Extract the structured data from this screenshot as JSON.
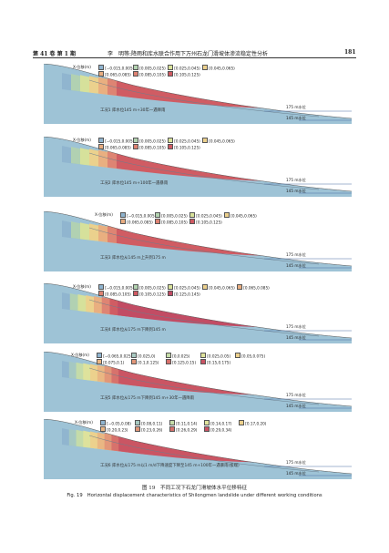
{
  "header": {
    "volume": "第 41 卷 第 1 期",
    "running_title": "李　明等:降雨和库水联合作用下万州石龙门滑坡体渗流稳定性分析",
    "page_number": "181"
  },
  "panels": [
    {
      "legend_title": "X-位移(m)",
      "legend_items": [
        "[−0.015,0.005)",
        "[0.005,0.025)",
        "[0.025,0.045)",
        "[0.045,0.065)",
        "[0.065,0.085)",
        "[0.085,0.105)",
        "[0.105,0.125)"
      ],
      "swatches": [
        "#8fb4cf",
        "#b3d3b0",
        "#d8e29a",
        "#ecd08c",
        "#e9ad80",
        "#dd8272",
        "#cf5a62"
      ],
      "level_upper": "175 m水位",
      "level_lower": "145 m水位",
      "condition": "工况1 库水位145 m+30年一遇降雨"
    },
    {
      "legend_title": "X-位移(m)",
      "legend_items": [
        "[−0.015,0.005)",
        "[0.005,0.025)",
        "[0.025,0.045)",
        "[0.045,0.065)",
        "[0.065,0.085)",
        "[0.085,0.105)",
        "[0.105,0.125)"
      ],
      "swatches": [
        "#8fb4cf",
        "#b3d3b0",
        "#d8e29a",
        "#ecd08c",
        "#e9ad80",
        "#dd8272",
        "#cf5a62"
      ],
      "level_upper": "175 m水位",
      "level_lower": "145 m水位",
      "condition": "工况2 库水位145 m+100年一遇暴雨"
    },
    {
      "legend_title": "X-位移(m)",
      "legend_items": [
        "[−0.015,0.005)",
        "[0.005,0.025)",
        "[0.025,0.045)",
        "[0.045,0.065)",
        "[0.065,0.085)",
        "[0.085,0.105)",
        "[0.105,0.125)"
      ],
      "swatches": [
        "#8fb4cf",
        "#b3d3b0",
        "#d8e29a",
        "#ecd08c",
        "#e9ad80",
        "#dd8272",
        "#cf5a62"
      ],
      "level_upper": "175 m水位",
      "level_lower": "145 m水位",
      "condition": "工况3 库水位从145 m上升到175 m"
    },
    {
      "legend_title": "X-位移(m)",
      "legend_items": [
        "[−0.015,0.005)",
        "[0.005,0.025)",
        "[0.025,0.045)",
        "[0.045,0.065)",
        "[0.065,0.085)",
        "[0.085,0.105)",
        "[0.105,0.125)",
        "[0.125,0.145)"
      ],
      "swatches": [
        "#8fb4cf",
        "#b3d3b0",
        "#d8e29a",
        "#ecd08c",
        "#e9ad80",
        "#dd8272",
        "#cf5a62",
        "#c14b64"
      ],
      "level_upper": "175 m水位",
      "level_lower": "145 m水位",
      "condition": "工况4 库水位从175 m下降到145 m"
    },
    {
      "legend_title": "X-位移(m)",
      "legend_items": [
        "[−0.065,0.025)",
        "[0.025,0)",
        "[0,0.025)",
        "[0.025,0.05)",
        "[0.05,0.075)",
        "[0.075,0.1)",
        "[0.1,0.125)",
        "[0.125,0.15)",
        "[0.15,0.175)"
      ],
      "swatches": [
        "#8fb4cf",
        "#a7c9c1",
        "#c5dca8",
        "#dfe39b",
        "#ecd08c",
        "#e9b583",
        "#e19577",
        "#d6706b",
        "#c95363"
      ],
      "level_upper": "175 m水位",
      "level_lower": "145 m水位",
      "condition": "工况5 库水位从175 m下降到145 m+30年一遇降雨"
    },
    {
      "legend_title": "X-位移(m)",
      "legend_items": [
        "[−0.05,0.08)",
        "[0.08,0.11)",
        "[0.11,0.14)",
        "[0.14,0.17)",
        "[0.17,0.20)",
        "[0.20,0.23)",
        "[0.23,0.26)",
        "[0.26,0.29)",
        "[0.29,0.34)"
      ],
      "swatches": [
        "#8fb4cf",
        "#a7c9c1",
        "#c5dca8",
        "#dfe39b",
        "#ecd08c",
        "#e9b583",
        "#e19577",
        "#d6706b",
        "#c95363"
      ],
      "level_upper": "175 m水位",
      "level_lower": "145 m水位",
      "condition": "工况6 库水位从175 m以1 m/d下降速度下降至145 m+100年一遇暴雨(极端)"
    }
  ],
  "caption": {
    "cn": "图 19　不同工况下石龙门滑坡体水平位移特征",
    "en": "Fig. 19　Horizontal displacement characteristics of Shilongmen landslide under different working conditions"
  }
}
